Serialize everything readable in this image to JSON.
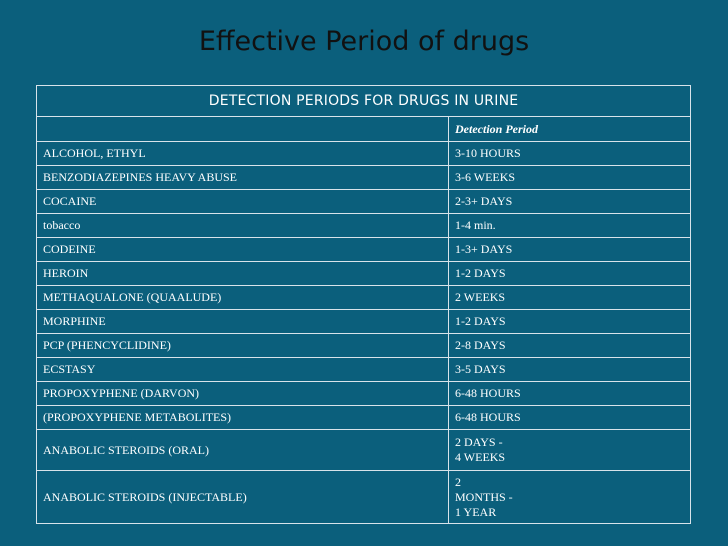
{
  "title": "Effective Period of drugs",
  "table": {
    "caption": "DETECTION PERIODS FOR DRUGS IN URINE",
    "col_header_drug": "",
    "col_header_period": "Detection Period",
    "rows": [
      {
        "drug": "ALCOHOL, ETHYL",
        "period": "3-10 HOURS"
      },
      {
        "drug": "BENZODIAZEPINES HEAVY ABUSE",
        "period": "3-6 WEEKS"
      },
      {
        "drug": "COCAINE",
        "period": "2-3+ DAYS"
      },
      {
        "drug": "tobacco",
        "period": "1-4 min."
      },
      {
        "drug": "CODEINE",
        "period": "1-3+ DAYS"
      },
      {
        "drug": "HEROIN",
        "period": "1-2 DAYS"
      },
      {
        "drug": "METHAQUALONE (QUAALUDE)",
        "period": "2 WEEKS"
      },
      {
        "drug": "MORPHINE",
        "period": "1-2 DAYS"
      },
      {
        "drug": "PCP (PHENCYCLIDINE)",
        "period": "2-8 DAYS"
      },
      {
        "drug": "ECSTASY",
        "period": "3-5 DAYS"
      },
      {
        "drug": "PROPOXYPHENE (DARVON)",
        "period": "6-48 HOURS"
      },
      {
        "drug": "(PROPOXYPHENE METABOLITES)",
        "period": "6-48 HOURS"
      },
      {
        "drug": "ANABOLIC STEROIDS (ORAL)",
        "period": "2 DAYS -\n4 WEEKS"
      },
      {
        "drug": "ANABOLIC STEROIDS (INJECTABLE)",
        "period": "2\nMONTHS -\n1 YEAR"
      }
    ]
  }
}
